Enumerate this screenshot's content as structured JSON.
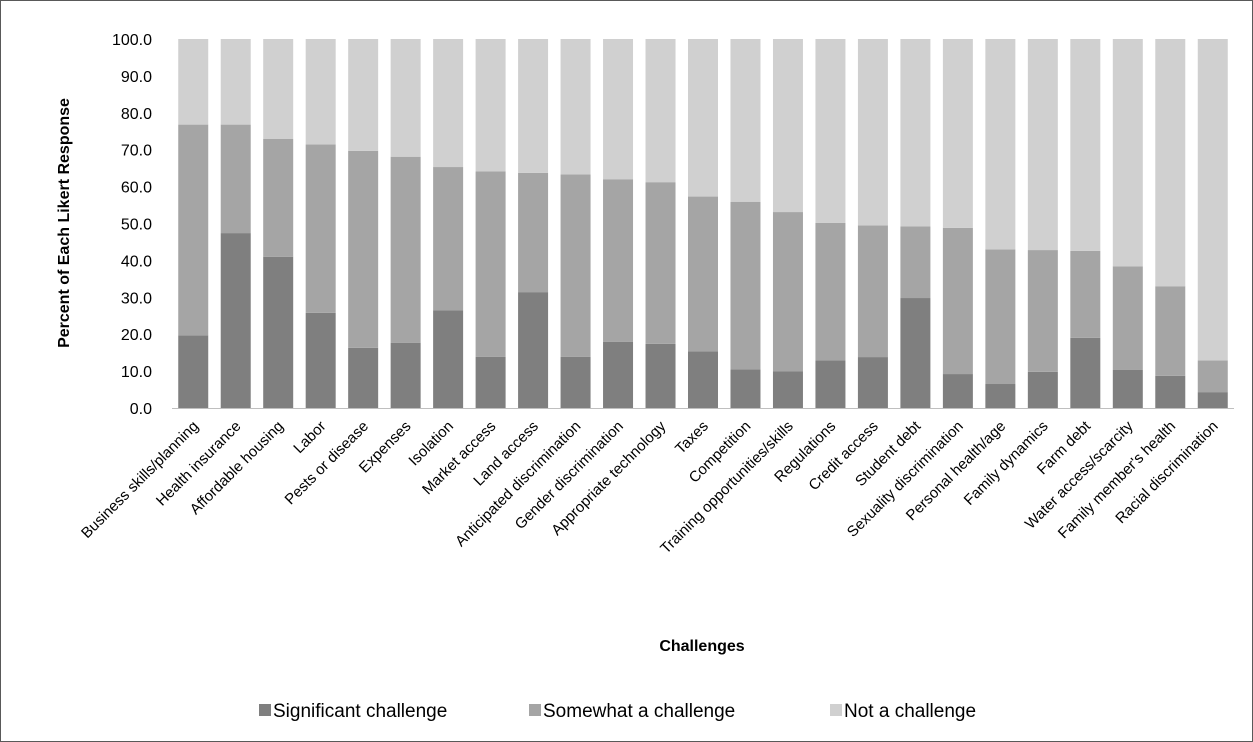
{
  "chart_data": {
    "type": "bar",
    "stacked": true,
    "title": "",
    "xlabel": "Challenges",
    "ylabel": "Percent of Each Likert Response",
    "ylim": [
      0,
      100
    ],
    "yticks": [
      "0.0",
      "10.0",
      "20.0",
      "30.0",
      "40.0",
      "50.0",
      "60.0",
      "70.0",
      "80.0",
      "90.0",
      "100.0"
    ],
    "grid": false,
    "legend_position": "bottom",
    "categories": [
      "Business skills/planning",
      "Health insurance",
      "Affordable housing",
      "Labor",
      "Pests or disease",
      "Expenses",
      "Isolation",
      "Market access",
      "Land access",
      "Anticipated discrimination",
      "Gender discrimination",
      "Appropriate technology",
      "Taxes",
      "Competition",
      "Training opportunities/skills",
      "Regulations",
      "Credit access",
      "Student debt",
      "Sexuality discrimination",
      "Personal health/age",
      "Family dynamics",
      "Farm debt",
      "Water access/scarcity",
      "Family member's health",
      "Racial discrimination"
    ],
    "series": [
      {
        "name": "Significant challenge",
        "color": "#7f7f7f",
        "values": [
          19.7,
          47.4,
          41.0,
          25.8,
          16.3,
          17.7,
          26.5,
          13.9,
          31.4,
          13.9,
          17.9,
          17.4,
          15.3,
          10.5,
          9.9,
          12.9,
          13.8,
          29.8,
          9.2,
          6.5,
          9.8,
          19.0,
          10.3,
          8.7,
          4.3
        ]
      },
      {
        "name": "Somewhat a challenge",
        "color": "#a5a5a5",
        "values": [
          57.1,
          29.4,
          31.9,
          45.6,
          53.4,
          50.4,
          38.8,
          50.2,
          32.3,
          49.4,
          44.1,
          43.8,
          42.0,
          45.4,
          43.2,
          37.3,
          35.7,
          19.4,
          39.6,
          36.5,
          33.0,
          23.6,
          28.1,
          24.3,
          8.6
        ]
      },
      {
        "name": "Not a challenge",
        "color": "#d0d0d0",
        "values": [
          23.2,
          23.2,
          27.1,
          28.6,
          30.3,
          31.9,
          34.7,
          35.9,
          36.3,
          36.7,
          38.0,
          38.8,
          42.7,
          44.1,
          46.9,
          49.8,
          50.5,
          50.8,
          51.2,
          57.0,
          57.2,
          57.4,
          61.6,
          67.0,
          87.1
        ]
      }
    ]
  }
}
